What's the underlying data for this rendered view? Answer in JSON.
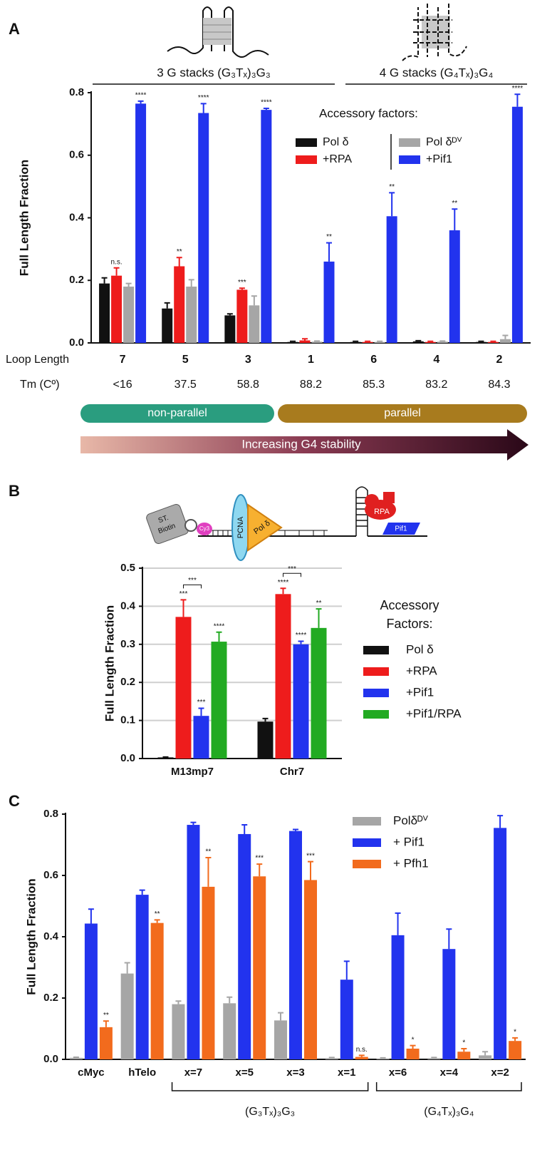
{
  "panels": [
    "A",
    "B",
    "C"
  ],
  "schematic": {
    "biotin": [
      "ST.",
      "Biotin"
    ],
    "cy3": "Cy3",
    "pcna": "PCNA",
    "pol": "Pol δ",
    "rpa": "RPA",
    "pif1": "Pif1"
  },
  "chart_data": [
    {
      "type": "bar",
      "y_label": "Full Length Fraction",
      "groups": [
        "3 G stacks (G₃Tₓ)₃G₃",
        "4 G stacks (G₄Tₓ)₃G₄"
      ],
      "legend_title": "Accessory factors:",
      "row_labels": [
        "Loop Length",
        "Tm (Cº)"
      ],
      "categories": [
        "7",
        "5",
        "3",
        "1",
        "6",
        "4",
        "2"
      ],
      "tm": [
        "<16",
        "37.5",
        "58.8",
        "88.2",
        "85.3",
        "83.2",
        "84.3"
      ],
      "bands": [
        "non-parallel",
        "parallel"
      ],
      "arrow": "Increasing G4 stability",
      "ylim": [
        0,
        0.8
      ],
      "yticks": [
        {
          "value": 0,
          "label": "0.0"
        },
        0.2,
        0.4,
        0.6,
        0.8
      ],
      "grid": false,
      "series": [
        {
          "name": "Pol δ",
          "color": "#111111",
          "values": [
            0.19,
            0.11,
            0.088,
            0.003,
            0.003,
            0.005,
            0.003
          ],
          "errors": [
            0.018,
            0.018,
            0.005,
            0.002,
            0.002,
            0.002,
            0.002
          ]
        },
        {
          "name": "+RPA",
          "color": "#ee1c1c",
          "values": [
            0.215,
            0.245,
            0.17,
            0.008,
            0.003,
            0.003,
            0.003
          ],
          "errors": [
            0.025,
            0.028,
            0.005,
            0.005,
            0.002,
            0.002,
            0.002
          ],
          "significance": [
            "n.s.",
            "**",
            "***",
            null,
            null,
            null,
            null
          ]
        },
        {
          "name": "Pol δᴰⱽ",
          "color": "#a6a6a6",
          "values": [
            0.18,
            0.18,
            0.12,
            0.004,
            0.003,
            0.004,
            0.012
          ],
          "errors": [
            0.01,
            0.022,
            0.03,
            0.002,
            0.002,
            0.002,
            0.012
          ]
        },
        {
          "name": "+Pif1",
          "color": "#2233ee",
          "values": [
            0.765,
            0.735,
            0.745,
            0.26,
            0.405,
            0.36,
            0.755
          ],
          "errors": [
            0.008,
            0.03,
            0.005,
            0.06,
            0.075,
            0.068,
            0.04
          ],
          "significance": [
            "****",
            "****",
            "****",
            "**",
            "**",
            "**",
            "****"
          ]
        }
      ]
    },
    {
      "type": "bar",
      "y_label": "Full Length Fraction",
      "legend_title": [
        "Accessory",
        "Factors:"
      ],
      "categories": [
        "M13mp7",
        "Chr7"
      ],
      "ylim": [
        0,
        0.5
      ],
      "yticks": [
        {
          "value": 0,
          "label": "0.0"
        },
        0.1,
        0.2,
        0.3,
        0.4,
        0.5
      ],
      "grid": true,
      "brackets": [
        "***",
        "***"
      ],
      "series": [
        {
          "name": "Pol δ",
          "color": "#111111",
          "values": [
            0.003,
            0.097
          ],
          "errors": [
            0.001,
            0.008
          ]
        },
        {
          "name": "+RPA",
          "color": "#ee1c1c",
          "values": [
            0.372,
            0.432
          ],
          "errors": [
            0.045,
            0.015
          ],
          "significance": [
            "***",
            "****"
          ]
        },
        {
          "name": "+Pif1",
          "color": "#2233ee",
          "values": [
            0.112,
            0.3
          ],
          "errors": [
            0.02,
            0.008
          ],
          "significance": [
            "***",
            "****"
          ]
        },
        {
          "name": "+Pif1/RPA",
          "color": "#22aa22",
          "values": [
            0.307,
            0.343
          ],
          "errors": [
            0.025,
            0.05
          ],
          "significance": [
            "****",
            "**"
          ]
        }
      ]
    },
    {
      "type": "bar",
      "y_label": "Full Length Fraction",
      "groups": [
        "(G₃Tₓ)₃G₃",
        "(G₄Tₓ)₃G₄"
      ],
      "categories": [
        "cMyc",
        "hTelo",
        "x=7",
        "x=5",
        "x=3",
        "x=1",
        "x=6",
        "x=4",
        "x=2"
      ],
      "ylim": [
        0,
        0.8
      ],
      "yticks": [
        {
          "value": 0,
          "label": "0.0"
        },
        0.2,
        0.4,
        0.6,
        0.8
      ],
      "grid": false,
      "series": [
        {
          "name": "Polδᴰⱽ",
          "color": "#a6a6a6",
          "values": [
            0.005,
            0.28,
            0.18,
            0.183,
            0.127,
            0.004,
            0.003,
            0.004,
            0.013
          ],
          "errors": [
            0.002,
            0.035,
            0.01,
            0.02,
            0.025,
            0.002,
            0.002,
            0.002,
            0.012
          ]
        },
        {
          "name": "+ Pif1",
          "color": "#2233ee",
          "values": [
            0.443,
            0.537,
            0.765,
            0.735,
            0.745,
            0.26,
            0.405,
            0.36,
            0.755
          ],
          "errors": [
            0.047,
            0.015,
            0.008,
            0.03,
            0.005,
            0.06,
            0.072,
            0.065,
            0.04
          ]
        },
        {
          "name": "+ Pfh1",
          "color": "#f26b1d",
          "values": [
            0.105,
            0.445,
            0.563,
            0.597,
            0.585,
            0.008,
            0.035,
            0.025,
            0.06
          ],
          "errors": [
            0.02,
            0.01,
            0.095,
            0.04,
            0.06,
            0.005,
            0.01,
            0.01,
            0.01
          ],
          "significance": [
            "**",
            "**",
            "**",
            "***",
            "***",
            "n.s.",
            "*",
            "*",
            "*"
          ]
        }
      ]
    }
  ]
}
